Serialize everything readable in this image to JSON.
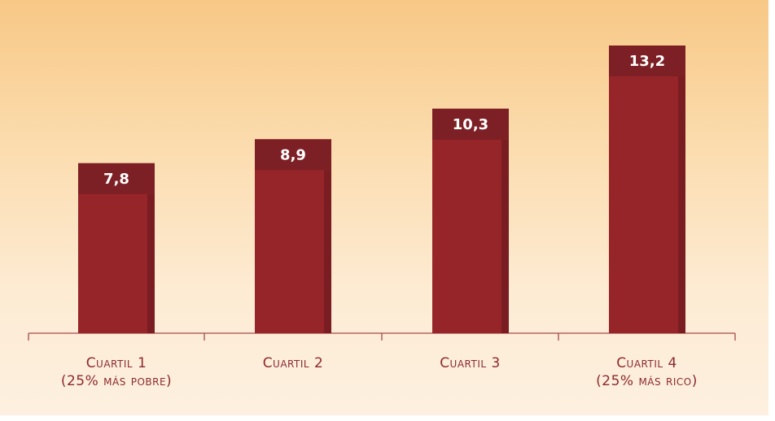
{
  "chart_data": {
    "type": "bar",
    "categories": [
      [
        "Cuartil 1",
        "(25% más pobre)"
      ],
      [
        "Cuartil 2"
      ],
      [
        "Cuartil 3"
      ],
      [
        "Cuartil 4",
        "(25% más rico)"
      ]
    ],
    "values": [
      7.8,
      8.9,
      10.3,
      13.2
    ],
    "data_labels": [
      "7,8",
      "8,9",
      "10,3",
      "13,2"
    ],
    "title": "",
    "xlabel": "",
    "ylabel": "",
    "ylim": [
      0,
      13.2
    ],
    "grid": false,
    "legend": "none",
    "colors": {
      "bar": "#962529",
      "bar_shadow": "#7a1d22",
      "label_box": "#7d2025",
      "label_text": "#ffffff",
      "axis": "#a5494c",
      "category_text": "#8c2a2e"
    }
  }
}
